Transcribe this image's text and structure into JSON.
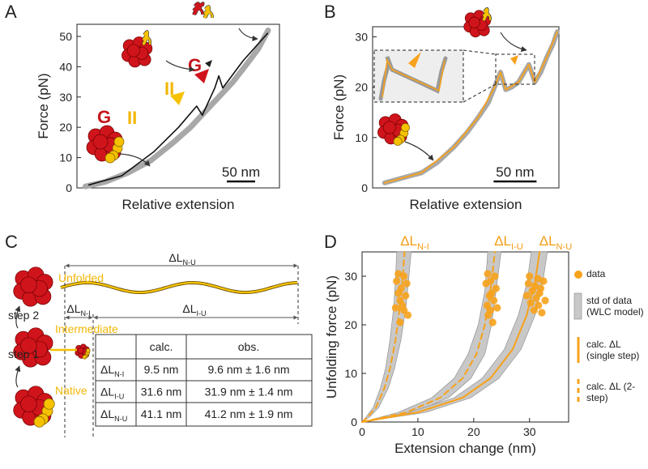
{
  "panel_labels": [
    "A",
    "B",
    "C",
    "D"
  ],
  "chart_data": [
    {
      "panel": "A",
      "type": "line",
      "ylabel": "Force (pN)",
      "xlabel": "Relative extension",
      "xlim": [
        0,
        357
      ],
      "ylim": [
        0,
        54
      ],
      "yticks": [
        0,
        10,
        20,
        30,
        40,
        50
      ],
      "scalebar": {
        "label": "50 nm",
        "value": 50
      },
      "annotations": [
        "G",
        "II",
        "G",
        "II"
      ],
      "series": [
        {
          "color": "#a8a8a8",
          "line_width": 7,
          "x": [
            15,
            50,
            90,
            130,
            170,
            200,
            225,
            250,
            275,
            300,
            320,
            337
          ],
          "values": [
            0.5,
            2,
            5,
            9,
            15,
            20,
            25,
            30,
            35,
            41,
            46,
            52
          ]
        },
        {
          "color": "#111111",
          "line_width": 1.6,
          "x": [
            21,
            79,
            136,
            179,
            211,
            221,
            243,
            250,
            257,
            293,
            336
          ],
          "values": [
            1,
            4,
            12,
            20,
            27,
            24,
            33,
            37,
            33,
            42,
            51
          ]
        }
      ]
    },
    {
      "panel": "B",
      "type": "line",
      "ylabel": "Force (pN)",
      "xlabel": "Relative extension",
      "xlim": [
        0,
        217
      ],
      "ylim": [
        0,
        32
      ],
      "yticks": [
        0,
        10,
        20,
        30
      ],
      "scalebar": {
        "label": "50 nm",
        "value": 50
      },
      "series": [
        {
          "color": "#a8a8a8",
          "line_width": 6,
          "x": [
            14,
            35,
            57,
            75,
            94,
            110,
            123,
            135,
            142,
            149,
            155,
            162,
            170,
            182,
            189,
            196,
            203,
            210,
            215
          ],
          "values": [
            1,
            2,
            3,
            5,
            8,
            11,
            14,
            17,
            20,
            23,
            19.5,
            20,
            21,
            24.5,
            21,
            23,
            26,
            28.5,
            31
          ]
        },
        {
          "color": "#f7a21b",
          "line_width": 1.8,
          "x": [
            14,
            57,
            94,
            123,
            142,
            149,
            155,
            170,
            182,
            189,
            203,
            215
          ],
          "values": [
            1,
            3,
            8,
            14,
            20,
            23,
            19.5,
            21,
            24.5,
            21,
            26,
            31
          ]
        }
      ]
    },
    {
      "panel": "D",
      "type": "scatter",
      "ylabel": "Unfolding force (pN)",
      "xlabel": "Extension change (nm)",
      "xlim": [
        0,
        37
      ],
      "ylim": [
        0,
        35
      ],
      "xticks": [
        0,
        10,
        20,
        30
      ],
      "yticks": [
        0,
        10,
        20,
        30
      ],
      "top_labels": [
        {
          "main": "ΔL",
          "sub": "N-I"
        },
        {
          "main": "ΔL",
          "sub": "I-U"
        },
        {
          "main": "ΔL",
          "sub": "N-U"
        }
      ],
      "series": [
        {
          "name": "data",
          "type": "points",
          "color": "#f7a21b",
          "x": [
            6.5,
            7.5,
            6.2,
            8,
            7,
            6.5,
            7.8,
            6.8,
            7.2,
            6,
            7.5,
            8.2,
            6.8,
            22.5,
            23.8,
            23,
            22.2,
            24,
            23.2,
            22.8,
            23.6,
            22.4,
            24.2,
            23,
            22.6,
            23.4,
            30,
            31.5,
            32.5,
            29.8,
            31,
            32,
            30.5,
            31.8,
            29.5,
            31.2,
            32.8,
            30.2,
            31.6,
            30.8,
            32.2
          ],
          "values": [
            30.5,
            30,
            29,
            28.5,
            27.5,
            26.5,
            26,
            25,
            24,
            23.5,
            23,
            22,
            20.5,
            30.5,
            30,
            29,
            28.5,
            27.5,
            26.5,
            26,
            25,
            24,
            23.5,
            23,
            22,
            20.5,
            30,
            29.5,
            29,
            28.5,
            28,
            27.5,
            27,
            26.5,
            26,
            25.5,
            25,
            24.5,
            24,
            23,
            22.5
          ]
        },
        {
          "name": "std of data (WLC model)",
          "type": "band",
          "color": "#c8c8c8",
          "values": [
            0,
            1,
            3,
            7,
            11,
            17,
            24,
            30,
            35
          ],
          "x": [
            0,
            0.7,
            2,
            3.3,
            4.2,
            5,
            5.7,
            6,
            6.2
          ],
          "x2": [
            0,
            1.3,
            3,
            4.7,
            5.8,
            7,
            7.9,
            8.4,
            8.8
          ]
        },
        {
          "name": "calc. ΔL (single step)",
          "type": "line",
          "color": "#f7a21b",
          "x": [
            0,
            10,
            18,
            23,
            27,
            29.5,
            31,
            31.8
          ],
          "values": [
            0,
            2,
            5,
            9,
            15,
            22,
            29,
            35
          ]
        },
        {
          "name": "calc. ΔL (2-step)",
          "type": "line",
          "dashed": true,
          "color": "#f7a21b",
          "x": [
            0,
            1,
            2.5,
            4,
            5,
            6,
            6.8,
            7.3,
            7.6,
            null,
            0,
            8,
            14,
            18,
            20.5,
            22,
            23,
            23.8
          ],
          "values": [
            0,
            1,
            3,
            7,
            11,
            17,
            24,
            30,
            35,
            null,
            0,
            2,
            5,
            9,
            14,
            20,
            27,
            35
          ]
        },
        {
          "type": "band",
          "color": "#c8c8c8",
          "values": [
            0,
            2,
            5,
            9,
            14,
            20,
            27,
            35
          ],
          "x": [
            0,
            6.5,
            12.5,
            16.5,
            19,
            20.8,
            22,
            22.5
          ],
          "x2": [
            0,
            9.5,
            15.5,
            19.5,
            22,
            23.2,
            24,
            24.9
          ]
        },
        {
          "type": "band",
          "color": "#c8c8c8",
          "values": [
            0,
            2,
            5,
            9,
            15,
            22,
            29,
            35
          ],
          "x": [
            0,
            8.5,
            16.5,
            21.5,
            25.5,
            28,
            29.6,
            30.3
          ],
          "x2": [
            0,
            11.5,
            19.5,
            24.5,
            28.5,
            31,
            32.4,
            33.2
          ]
        }
      ]
    }
  ],
  "panel_c": {
    "stage_labels": [
      "Unfolded",
      "Intermediate",
      "Native"
    ],
    "step_labels": [
      "step 2",
      "step 1"
    ],
    "lengths": [
      {
        "main": "ΔL",
        "sub": "N-U"
      },
      {
        "main": "ΔL",
        "sub": "N-I"
      },
      {
        "main": "ΔL",
        "sub": "I-U"
      }
    ],
    "table": {
      "columns": [
        "calc.",
        "obs."
      ],
      "rows": [
        {
          "label": {
            "main": "ΔL",
            "sub": "N-I"
          },
          "cells": [
            "9.5 nm",
            "9.6 nm ± 1.6 nm"
          ]
        },
        {
          "label": {
            "main": "ΔL",
            "sub": "I-U"
          },
          "cells": [
            "31.6 nm",
            "31.9 nm ± 1.4 nm"
          ]
        },
        {
          "label": {
            "main": "ΔL",
            "sub": "N-U"
          },
          "cells": [
            "41.1 nm",
            "41.2 nm ± 1.9 nm"
          ]
        }
      ]
    }
  }
}
